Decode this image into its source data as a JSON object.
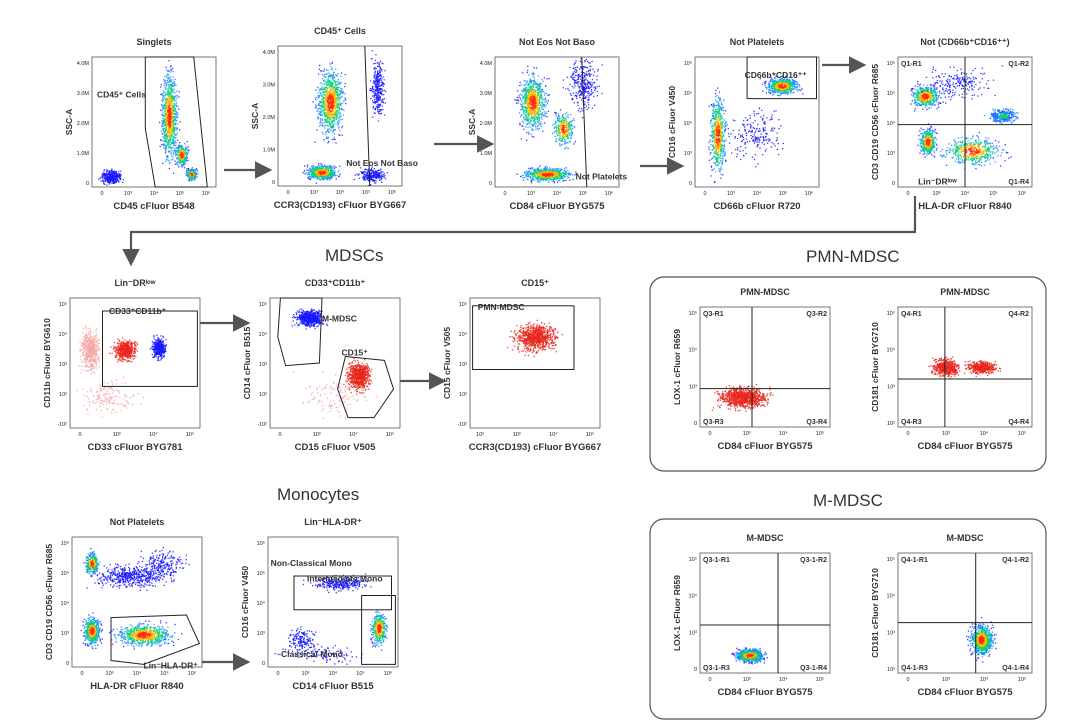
{
  "sections": {
    "mdscs": "MDSCs",
    "pmn_mdsc": "PMN-MDSC",
    "monocytes": "Monocytes",
    "m_mdsc": "M-MDSC"
  },
  "colors": {
    "density_low": "#1a1aff",
    "density_mid": "#00cc66",
    "density_high": "#ff2200",
    "gated_red": "#e8271c",
    "gated_pink": "#f4a6a6",
    "arrow": "#555555"
  },
  "plots": [
    {
      "id": "singlets",
      "title": "Singlets",
      "xlabel": "CD45 cFluor B548",
      "ylabel": "SSC-A",
      "yticks": [
        "4.0M",
        "3.0M",
        "2.0M",
        "1.0M",
        "0"
      ],
      "xticks": [
        "0",
        "10³",
        "10⁴",
        "10⁵",
        "10⁶"
      ],
      "gates": [
        "CD45⁺ Cells"
      ],
      "quadrants": []
    },
    {
      "id": "cd45",
      "title": "CD45⁺ Cells",
      "xlabel": "CCR3(CD193) cFluor BYG667",
      "ylabel": "SSC-A",
      "yticks": [
        "4.0M",
        "3.0M",
        "2.0M",
        "1.0M",
        "0"
      ],
      "xticks": [
        "0",
        "10³",
        "10⁴",
        "10⁵",
        "10⁶"
      ],
      "gates": [
        "Not Eos Not Baso"
      ],
      "quadrants": []
    },
    {
      "id": "noteos",
      "title": "Not Eos Not Baso",
      "xlabel": "CD84 cFluor BYG575",
      "ylabel": "SSC-A",
      "yticks": [
        "4.0M",
        "3.0M",
        "2.0M",
        "1.0M",
        "0"
      ],
      "xticks": [
        "0",
        "10³",
        "10⁴",
        "10⁵",
        "10⁶"
      ],
      "gates": [
        "Not Platelets"
      ],
      "quadrants": []
    },
    {
      "id": "notplatelets",
      "title": "Not Platelets",
      "xlabel": "CD66b cFluor R720",
      "ylabel": "CD16 cFluor V450",
      "yticks": [
        "10⁶",
        "10⁵",
        "10⁴",
        "10³",
        "0"
      ],
      "xticks": [
        "0",
        "10³",
        "10⁴",
        "10⁵",
        "10⁶"
      ],
      "gates": [
        "CD66b⁺CD16⁺⁺"
      ],
      "quadrants": []
    },
    {
      "id": "notcd66b",
      "title": "Not (CD66b⁺CD16⁺⁺)",
      "xlabel": "HLA-DR cFluor R840",
      "ylabel": "CD3 CD19 CD56 cFluor R685",
      "yticks": [
        "10⁶",
        "10⁵",
        "10⁴",
        "10³",
        "0"
      ],
      "xticks": [
        "0",
        "10³",
        "10⁴",
        "10⁵",
        "10⁶"
      ],
      "gates": [
        "Lin⁻DRˡᵒʷ"
      ],
      "quadrants": [
        "Q1-R1",
        "Q1-R2",
        "Q1-R4"
      ]
    },
    {
      "id": "lindr",
      "title": "Lin⁻DRˡᵒʷ",
      "xlabel": "CD33 cFluor BYG781",
      "ylabel": "CD11b cFluor BYG610",
      "yticks": [
        "10⁵",
        "10⁴",
        "10³",
        "10²",
        "-10²"
      ],
      "xticks": [
        "0",
        "10³",
        "10⁴",
        "10⁵"
      ],
      "gates": [
        "CD33⁺CD11b⁺"
      ],
      "quadrants": []
    },
    {
      "id": "cd33cd11b",
      "title": "CD33⁺CD11b⁺",
      "xlabel": "CD15 cFluor V505",
      "ylabel": "CD14 cFluor B515",
      "yticks": [
        "10⁵",
        "10⁴",
        "10³",
        "10²",
        "-10²"
      ],
      "xticks": [
        "0",
        "10³",
        "10⁴",
        "10⁵"
      ],
      "gates": [
        "M-MDSC",
        "CD15⁺"
      ],
      "quadrants": []
    },
    {
      "id": "cd15",
      "title": "CD15⁺",
      "xlabel": "CCR3(CD193) cFluor BYG667",
      "ylabel": "CD15 cFluor V505",
      "yticks": [
        "10⁵",
        "10⁴",
        "10³",
        "10²",
        "-10²"
      ],
      "xticks": [
        "10²",
        "10³",
        "10⁴",
        "10⁵"
      ],
      "gates": [
        "PMN-MDSC"
      ],
      "quadrants": []
    },
    {
      "id": "pmn1",
      "title": "PMN-MDSC",
      "xlabel": "CD84 cFluor BYG575",
      "ylabel": "LOX-1 cFluor R659",
      "yticks": [
        "10⁵",
        "10⁴",
        "10³",
        "0"
      ],
      "xticks": [
        "0",
        "10³",
        "10⁴",
        "10⁵"
      ],
      "gates": [],
      "quadrants": [
        "Q3-R1",
        "Q3-R2",
        "Q3-R3",
        "Q3-R4"
      ]
    },
    {
      "id": "pmn2",
      "title": "PMN-MDSC",
      "xlabel": "CD84 cFluor BYG575",
      "ylabel": "CD181 cFluor BYG710",
      "yticks": [
        "10⁵",
        "10⁴",
        "10³",
        "10²"
      ],
      "xticks": [
        "0",
        "10³",
        "10⁴",
        "10⁵"
      ],
      "gates": [],
      "quadrants": [
        "Q4-R1",
        "Q4-R2",
        "Q4-R3",
        "Q4-R4"
      ]
    },
    {
      "id": "mono1",
      "title": "Not Platelets",
      "xlabel": "HLA-DR cFluor R840",
      "ylabel": "CD3 CD19 CD56 cFluor R685",
      "yticks": [
        "10⁶",
        "10⁵",
        "10⁴",
        "10³",
        "0"
      ],
      "xticks": [
        "0",
        "10³",
        "10⁴",
        "10⁵",
        "10⁶"
      ],
      "gates": [
        "Lin⁻HLA-DR⁺"
      ],
      "quadrants": []
    },
    {
      "id": "mono2",
      "title": "Lin⁻HLA-DR⁺",
      "xlabel": "CD14 cFluor B515",
      "ylabel": "CD16 cFluor V450",
      "yticks": [
        "10⁶",
        "10⁵",
        "10⁴",
        "10³",
        "0"
      ],
      "xticks": [
        "0",
        "10³",
        "10⁴",
        "10⁵",
        "10⁶"
      ],
      "gates": [
        "Non-Classical Mono",
        "Intermediate Mono",
        "Classical Mono"
      ],
      "quadrants": []
    },
    {
      "id": "mm1",
      "title": "M-MDSC",
      "xlabel": "CD84 cFluor BYG575",
      "ylabel": "LOX-1 cFluor R659",
      "yticks": [
        "10⁵",
        "10⁴",
        "10³",
        "0"
      ],
      "xticks": [
        "0",
        "10³",
        "10⁴",
        "10⁵"
      ],
      "gates": [],
      "quadrants": [
        "Q3-1-R1",
        "Q3-1-R2",
        "Q3-1-R3",
        "Q3-1-R4"
      ]
    },
    {
      "id": "mm2",
      "title": "M-MDSC",
      "xlabel": "CD84 cFluor BYG575",
      "ylabel": "CD181 cFluor BYG710",
      "yticks": [
        "10⁵",
        "10⁴",
        "10³",
        "10²"
      ],
      "xticks": [
        "0",
        "10³",
        "10⁴",
        "10⁵"
      ],
      "gates": [],
      "quadrants": [
        "Q4-1-R1",
        "Q4-1-R2",
        "Q4-1-R3",
        "Q4-1-R4"
      ]
    }
  ]
}
